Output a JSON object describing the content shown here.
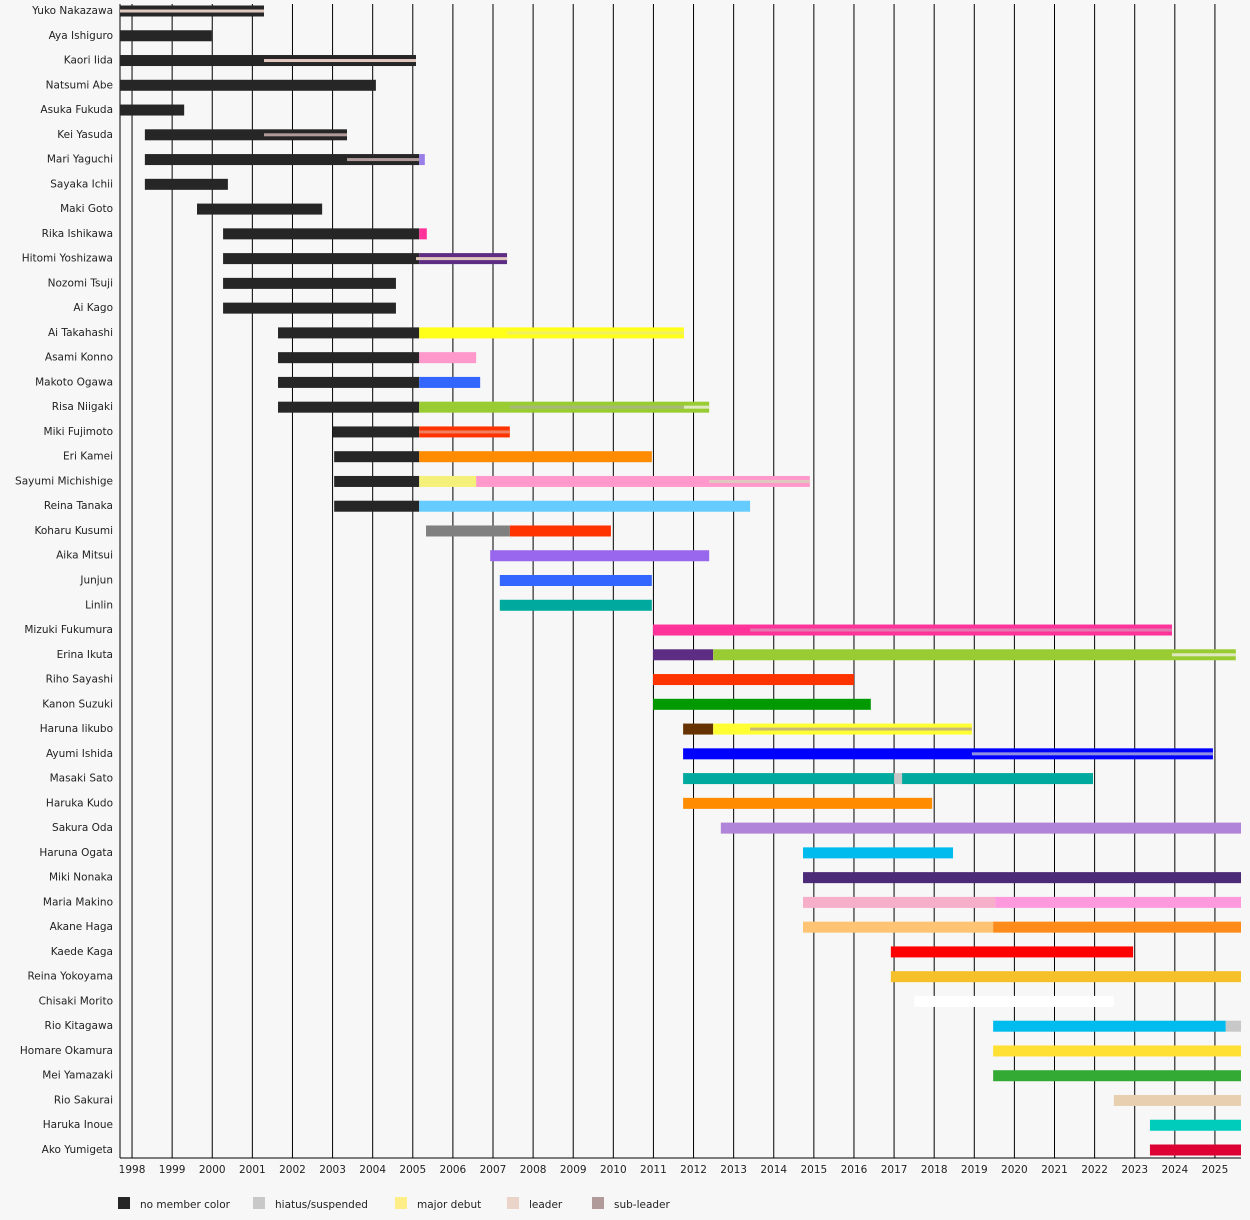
{
  "chart_data": {
    "type": "timeline",
    "xlim": [
      1997.7,
      2025.65
    ],
    "xticks": [
      1998,
      1999,
      2000,
      2001,
      2002,
      2003,
      2004,
      2005,
      2006,
      2007,
      2008,
      2009,
      2010,
      2011,
      2012,
      2013,
      2014,
      2015,
      2016,
      2017,
      2018,
      2019,
      2020,
      2021,
      2022,
      2023,
      2024,
      2025
    ],
    "grid": true,
    "rows": [
      {
        "name": "Yuko Nakazawa",
        "segments": [
          {
            "start": 1997.7,
            "end": 2001.29,
            "color": "#262626"
          }
        ],
        "roles": [
          {
            "start": 1997.7,
            "end": 2001.29,
            "color": "#e0c8c0"
          }
        ]
      },
      {
        "name": "Aya Ishiguro",
        "segments": [
          {
            "start": 1997.7,
            "end": 1999.99,
            "color": "#262626"
          }
        ]
      },
      {
        "name": "Kaori Iida",
        "segments": [
          {
            "start": 1997.7,
            "end": 2005.08,
            "color": "#262626"
          }
        ],
        "roles": [
          {
            "start": 2001.29,
            "end": 2005.08,
            "color": "#e0c8c0"
          }
        ]
      },
      {
        "name": "Natsumi Abe",
        "segments": [
          {
            "start": 1997.7,
            "end": 2004.08,
            "color": "#262626"
          }
        ]
      },
      {
        "name": "Asuka Fukuda",
        "segments": [
          {
            "start": 1997.7,
            "end": 1999.3,
            "color": "#262626"
          }
        ]
      },
      {
        "name": "Kei Yasuda",
        "segments": [
          {
            "start": 1998.32,
            "end": 2003.36,
            "color": "#262626"
          }
        ],
        "roles": [
          {
            "start": 2001.29,
            "end": 2003.36,
            "color": "#b09a9a"
          }
        ]
      },
      {
        "name": "Mari Yaguchi",
        "segments": [
          {
            "start": 1998.32,
            "end": 2005.16,
            "color": "#262626"
          },
          {
            "start": 2005.16,
            "end": 2005.3,
            "color": "#9b7fe8"
          }
        ],
        "roles": [
          {
            "start": 2003.36,
            "end": 2005.16,
            "color": "#b09a9a"
          }
        ]
      },
      {
        "name": "Sayaka Ichii",
        "segments": [
          {
            "start": 1998.32,
            "end": 2000.39,
            "color": "#262626"
          }
        ]
      },
      {
        "name": "Maki Goto",
        "segments": [
          {
            "start": 1999.62,
            "end": 2002.74,
            "color": "#262626"
          }
        ]
      },
      {
        "name": "Rika Ishikawa",
        "segments": [
          {
            "start": 2000.27,
            "end": 2005.16,
            "color": "#262626"
          },
          {
            "start": 2005.16,
            "end": 2005.35,
            "color": "#ff3399"
          }
        ]
      },
      {
        "name": "Hitomi Yoshizawa",
        "segments": [
          {
            "start": 2000.27,
            "end": 2005.16,
            "color": "#262626"
          },
          {
            "start": 2005.16,
            "end": 2007.35,
            "color": "#5c2d82"
          }
        ],
        "roles": [
          {
            "start": 2005.08,
            "end": 2007.35,
            "color": "#e0c8c0"
          }
        ]
      },
      {
        "name": "Nozomi Tsuji",
        "segments": [
          {
            "start": 2000.27,
            "end": 2004.58,
            "color": "#262626"
          }
        ]
      },
      {
        "name": "Ai Kago",
        "segments": [
          {
            "start": 2000.27,
            "end": 2004.58,
            "color": "#262626"
          }
        ]
      },
      {
        "name": "Ai Takahashi",
        "segments": [
          {
            "start": 2001.64,
            "end": 2005.16,
            "color": "#262626"
          },
          {
            "start": 2005.16,
            "end": 2011.76,
            "color": "#ffff1a"
          }
        ],
        "roles": [
          {
            "start": 2007.35,
            "end": 2011.76,
            "color": "#f0f060"
          }
        ]
      },
      {
        "name": "Asami Konno",
        "segments": [
          {
            "start": 2001.64,
            "end": 2005.16,
            "color": "#262626"
          },
          {
            "start": 2005.16,
            "end": 2006.58,
            "color": "#ff99cc"
          }
        ]
      },
      {
        "name": "Makoto Ogawa",
        "segments": [
          {
            "start": 2001.64,
            "end": 2005.16,
            "color": "#262626"
          },
          {
            "start": 2005.16,
            "end": 2006.68,
            "color": "#3366ff"
          }
        ]
      },
      {
        "name": "Risa Niigaki",
        "segments": [
          {
            "start": 2001.64,
            "end": 2005.16,
            "color": "#262626"
          },
          {
            "start": 2005.16,
            "end": 2012.39,
            "color": "#99cc33"
          }
        ],
        "roles": [
          {
            "start": 2007.42,
            "end": 2011.76,
            "color": "#a8b878"
          },
          {
            "start": 2011.76,
            "end": 2012.39,
            "color": "#e0e8c0"
          }
        ]
      },
      {
        "name": "Miki Fujimoto",
        "segments": [
          {
            "start": 2003.01,
            "end": 2005.16,
            "color": "#262626"
          },
          {
            "start": 2005.16,
            "end": 2007.42,
            "color": "#ff3300"
          }
        ],
        "roles": [
          {
            "start": 2005.16,
            "end": 2007.42,
            "color": "#f08060"
          }
        ]
      },
      {
        "name": "Eri Kamei",
        "segments": [
          {
            "start": 2003.04,
            "end": 2005.16,
            "color": "#262626"
          },
          {
            "start": 2005.16,
            "end": 2010.96,
            "color": "#ff8c00"
          }
        ]
      },
      {
        "name": "Sayumi Michishige",
        "segments": [
          {
            "start": 2003.04,
            "end": 2005.16,
            "color": "#262626"
          },
          {
            "start": 2005.16,
            "end": 2006.58,
            "color": "#f5f07a"
          },
          {
            "start": 2006.58,
            "end": 2014.9,
            "color": "#ff99cc"
          }
        ],
        "roles": [
          {
            "start": 2012.39,
            "end": 2014.9,
            "color": "#e0c8c0"
          }
        ]
      },
      {
        "name": "Reina Tanaka",
        "segments": [
          {
            "start": 2003.04,
            "end": 2005.16,
            "color": "#262626"
          },
          {
            "start": 2005.16,
            "end": 2013.41,
            "color": "#66ccff"
          }
        ]
      },
      {
        "name": "Koharu Kusumi",
        "segments": [
          {
            "start": 2005.33,
            "end": 2007.42,
            "color": "#808080"
          },
          {
            "start": 2007.42,
            "end": 2009.94,
            "color": "#ff3300"
          }
        ]
      },
      {
        "name": "Aika Mitsui",
        "segments": [
          {
            "start": 2006.93,
            "end": 2012.39,
            "color": "#9966ee"
          }
        ]
      },
      {
        "name": "Junjun",
        "segments": [
          {
            "start": 2007.17,
            "end": 2010.96,
            "color": "#3366ff"
          }
        ]
      },
      {
        "name": "Linlin",
        "segments": [
          {
            "start": 2007.17,
            "end": 2010.96,
            "color": "#00a99d"
          }
        ]
      },
      {
        "name": "Mizuki Fukumura",
        "segments": [
          {
            "start": 2010.99,
            "end": 2023.93,
            "color": "#ff3399"
          }
        ],
        "roles": [
          {
            "start": 2013.41,
            "end": 2023.93,
            "color": "#e07ab0"
          }
        ]
      },
      {
        "name": "Erina Ikuta",
        "segments": [
          {
            "start": 2010.99,
            "end": 2012.49,
            "color": "#5c2d82"
          },
          {
            "start": 2012.49,
            "end": 2025.52,
            "color": "#99cc33"
          }
        ],
        "roles": [
          {
            "start": 2023.93,
            "end": 2025.52,
            "color": "#e0e8c0"
          }
        ]
      },
      {
        "name": "Riho Sayashi",
        "segments": [
          {
            "start": 2010.99,
            "end": 2016.0,
            "color": "#ff3300"
          }
        ]
      },
      {
        "name": "Kanon Suzuki",
        "segments": [
          {
            "start": 2010.99,
            "end": 2016.42,
            "color": "#009900"
          }
        ]
      },
      {
        "name": "Haruna Iikubo",
        "segments": [
          {
            "start": 2011.74,
            "end": 2012.49,
            "color": "#663300"
          },
          {
            "start": 2012.49,
            "end": 2018.94,
            "color": "#ffff33"
          }
        ],
        "roles": [
          {
            "start": 2013.41,
            "end": 2018.94,
            "color": "#c8b878"
          }
        ]
      },
      {
        "name": "Ayumi Ishida",
        "segments": [
          {
            "start": 2011.74,
            "end": 2024.95,
            "color": "#0000ff"
          }
        ],
        "roles": [
          {
            "start": 2018.94,
            "end": 2024.95,
            "color": "#9090e0"
          }
        ]
      },
      {
        "name": "Masaki Sato",
        "segments": [
          {
            "start": 2011.74,
            "end": 2017.0,
            "color": "#00a99d"
          },
          {
            "start": 2017.0,
            "end": 2017.2,
            "color": "#c8c8c8"
          },
          {
            "start": 2017.2,
            "end": 2021.96,
            "color": "#00a99d"
          }
        ]
      },
      {
        "name": "Haruka Kudo",
        "segments": [
          {
            "start": 2011.74,
            "end": 2017.95,
            "color": "#ff8c00"
          }
        ]
      },
      {
        "name": "Sakura Oda",
        "segments": [
          {
            "start": 2012.68,
            "end": 2025.65,
            "color": "#b084d8"
          }
        ]
      },
      {
        "name": "Haruna Ogata",
        "segments": [
          {
            "start": 2014.73,
            "end": 2018.47,
            "color": "#00bbee"
          }
        ]
      },
      {
        "name": "Miki Nonaka",
        "segments": [
          {
            "start": 2014.73,
            "end": 2025.65,
            "color": "#4b2a78"
          }
        ]
      },
      {
        "name": "Maria Makino",
        "segments": [
          {
            "start": 2014.73,
            "end": 2019.52,
            "color": "#f7aec8"
          },
          {
            "start": 2019.52,
            "end": 2025.65,
            "color": "#ff99dd"
          }
        ]
      },
      {
        "name": "Akane Haga",
        "segments": [
          {
            "start": 2014.73,
            "end": 2019.47,
            "color": "#ffc473"
          },
          {
            "start": 2019.47,
            "end": 2025.65,
            "color": "#ff8c1a"
          }
        ]
      },
      {
        "name": "Kaede Kaga",
        "segments": [
          {
            "start": 2016.92,
            "end": 2022.96,
            "color": "#ff0000"
          }
        ]
      },
      {
        "name": "Reina Yokoyama",
        "segments": [
          {
            "start": 2016.92,
            "end": 2025.65,
            "color": "#f5c02a"
          }
        ]
      },
      {
        "name": "Chisaki Morito",
        "segments": [
          {
            "start": 2017.5,
            "end": 2022.48,
            "color": "#ffffff"
          }
        ]
      },
      {
        "name": "Rio Kitagawa",
        "segments": [
          {
            "start": 2019.47,
            "end": 2025.27,
            "color": "#00bbee"
          },
          {
            "start": 2025.27,
            "end": 2025.65,
            "color": "#c8c8c8"
          }
        ]
      },
      {
        "name": "Homare Okamura",
        "segments": [
          {
            "start": 2019.47,
            "end": 2025.65,
            "color": "#ffe033"
          }
        ]
      },
      {
        "name": "Mei Yamazaki",
        "segments": [
          {
            "start": 2019.47,
            "end": 2025.65,
            "color": "#33aa33"
          }
        ]
      },
      {
        "name": "Rio Sakurai",
        "segments": [
          {
            "start": 2022.48,
            "end": 2025.65,
            "color": "#e8cfb0"
          }
        ]
      },
      {
        "name": "Haruka Inoue",
        "segments": [
          {
            "start": 2023.38,
            "end": 2025.65,
            "color": "#00ccbb"
          }
        ]
      },
      {
        "name": "Ako Yumigeta",
        "segments": [
          {
            "start": 2023.38,
            "end": 2025.65,
            "color": "#dd0033"
          }
        ]
      }
    ],
    "legend": [
      {
        "name": "no member color",
        "color": "#262626"
      },
      {
        "name": "hiatus/suspended",
        "color": "#c8c8c8"
      },
      {
        "name": "major debut",
        "color": "#ffee88"
      },
      {
        "name": "leader",
        "color": "#ead3c8"
      },
      {
        "name": "sub-leader",
        "color": "#b09a9a"
      }
    ]
  }
}
